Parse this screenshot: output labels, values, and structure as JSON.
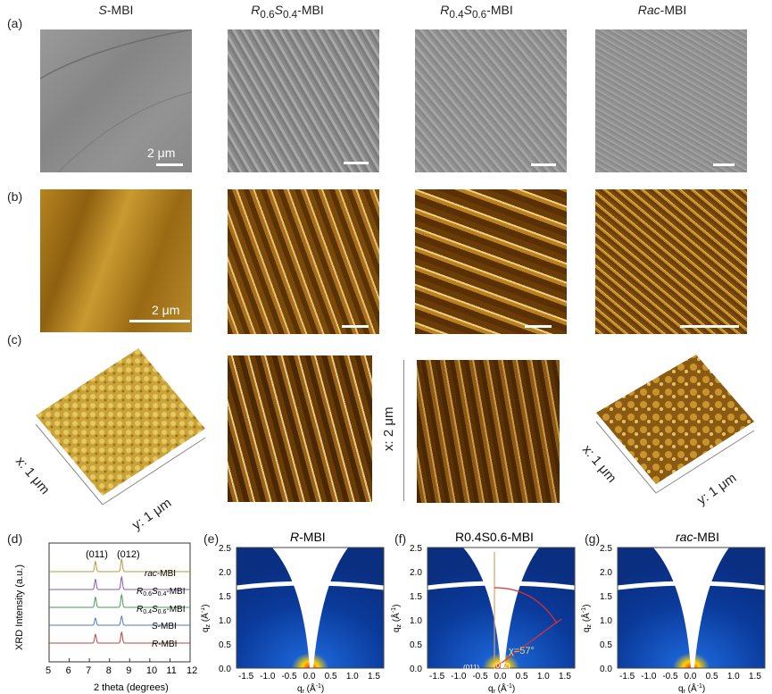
{
  "labels": {
    "a": "(a)",
    "b": "(b)",
    "c": "(c)",
    "d": "(d)",
    "e": "(e)",
    "f": "(f)",
    "g": "(g)"
  },
  "columns": {
    "c1": {
      "pre": "S",
      "post": "-MBI"
    },
    "c2": {
      "r": "R",
      "rsub": "0.6",
      "s": "S",
      "ssub": "0.4",
      "post": "-MBI"
    },
    "c3": {
      "r": "R",
      "rsub": "0.4",
      "s": "S",
      "ssub": "0.6",
      "post": "-MBI"
    },
    "c4": {
      "pre": "Rac",
      "post": "-MBI"
    }
  },
  "scalebars": {
    "sem": "2 μm",
    "afm": "2 μm"
  },
  "axes3d": {
    "x1": "x: 1 μm",
    "y1": "y: 1 μm",
    "x2": "x: 2 μm",
    "x4": "x: 1 μm",
    "y4": "y: 1 μm"
  },
  "xrd": {
    "ylabel": "XRD Intensity (a.u.)",
    "xlabel": "2 theta (degrees)",
    "peaks": [
      "(011)",
      "(012)"
    ],
    "series": [
      {
        "name": "rac-MBI",
        "pre": "rac",
        "post": "-MBI",
        "color": "#b89a3a"
      },
      {
        "name": "R0.6S0.4-MBI",
        "r": "R",
        "rsub": "0.6",
        "s": "S",
        "ssub": "0.4",
        "post": "-MBI",
        "color": "#8a5aa8"
      },
      {
        "name": "R0.4S0.6-MBI",
        "r": "R",
        "rsub": "0.4",
        "s": "S",
        "ssub": "0.6",
        "post": "-MBI",
        "color": "#4a9a5a"
      },
      {
        "name": "S-MBI",
        "pre": "S",
        "post": "-MBI",
        "color": "#4a7ac0"
      },
      {
        "name": "R-MBI",
        "pre": "R",
        "post": "-MBI",
        "color": "#c04040"
      }
    ],
    "xticks": [
      "5",
      "6",
      "7",
      "8",
      "9",
      "10",
      "11",
      "12"
    ]
  },
  "giwaxs": {
    "e": {
      "title_pre": "R",
      "title_post": "-MBI"
    },
    "f": {
      "title": "R0.4S0.6-MBI",
      "chi": "χ=57°",
      "p1": "(011)",
      "p2": "(012)"
    },
    "g": {
      "title_pre": "rac",
      "title_post": "-MBI"
    },
    "yticks": [
      "2.5",
      "2.0",
      "1.5",
      "1.0",
      "0.5",
      "0.0"
    ],
    "xticks": [
      "-1.5",
      "-1.0",
      "-0.5",
      "0.0",
      "0.5",
      "1.0",
      "1.5"
    ],
    "ylabel": "q",
    "ysub": "z",
    "yunit": " (Å",
    "xlabel": "q",
    "xsub": "r",
    "xunit": " (Å",
    "inv": "-1",
    "close": ")"
  }
}
